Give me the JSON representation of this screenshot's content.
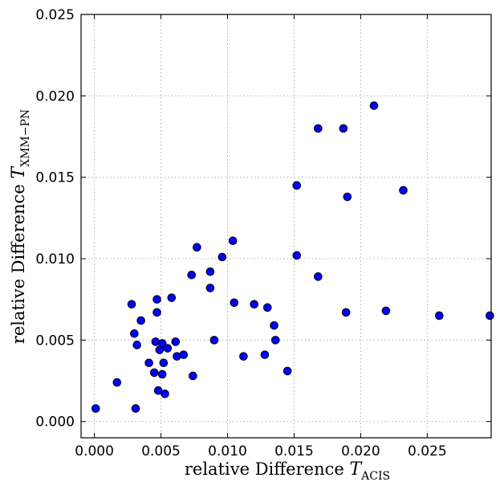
{
  "chart_data": {
    "type": "scatter",
    "title": "",
    "xlabel": {
      "prefix": "relative Difference ",
      "symbol": "T",
      "subscript": "ACIS"
    },
    "ylabel": {
      "prefix": "relative Difference ",
      "symbol": "T",
      "subscript": "XMM−PN"
    },
    "xlim": [
      -0.001,
      0.0298
    ],
    "ylim": [
      -0.001,
      0.025
    ],
    "xticks": [
      0.0,
      0.005,
      0.01,
      0.015,
      0.02,
      0.025
    ],
    "xtick_labels": [
      "0.000",
      "0.005",
      "0.010",
      "0.015",
      "0.020",
      "0.025"
    ],
    "yticks": [
      0.0,
      0.005,
      0.01,
      0.015,
      0.02,
      0.025
    ],
    "ytick_labels": [
      "0.000",
      "0.005",
      "0.010",
      "0.015",
      "0.020",
      "0.025"
    ],
    "grid": true,
    "marker_color": "#0000ff",
    "series": [
      {
        "x": [
          0.0001,
          0.0017,
          0.0028,
          0.003,
          0.0031,
          0.0032,
          0.0035,
          0.0041,
          0.0045,
          0.0046,
          0.0047,
          0.0047,
          0.0048,
          0.0049,
          0.0051,
          0.0051,
          0.0052,
          0.0053,
          0.0055,
          0.0058,
          0.0061,
          0.0062,
          0.0067,
          0.0073,
          0.0074,
          0.0077,
          0.0087,
          0.0087,
          0.009,
          0.0096,
          0.0104,
          0.0105,
          0.0112,
          0.012,
          0.0128,
          0.013,
          0.0135,
          0.0136,
          0.0145,
          0.0152,
          0.0152,
          0.0168,
          0.0168,
          0.0187,
          0.0189,
          0.019,
          0.021,
          0.0219,
          0.0232,
          0.0259,
          0.0297
        ],
        "y": [
          0.0008,
          0.0024,
          0.0072,
          0.0054,
          0.0008,
          0.0047,
          0.0062,
          0.0036,
          0.003,
          0.0049,
          0.0075,
          0.0067,
          0.0019,
          0.0044,
          0.0029,
          0.0048,
          0.0036,
          0.0017,
          0.0045,
          0.0076,
          0.0049,
          0.004,
          0.0041,
          0.009,
          0.0028,
          0.0107,
          0.0082,
          0.0092,
          0.005,
          0.0101,
          0.0111,
          0.0073,
          0.004,
          0.0072,
          0.0041,
          0.007,
          0.0059,
          0.005,
          0.0031,
          0.0145,
          0.0102,
          0.0089,
          0.018,
          0.018,
          0.0067,
          0.0138,
          0.0194,
          0.0068,
          0.0142,
          0.0065,
          0.0065
        ]
      }
    ]
  }
}
